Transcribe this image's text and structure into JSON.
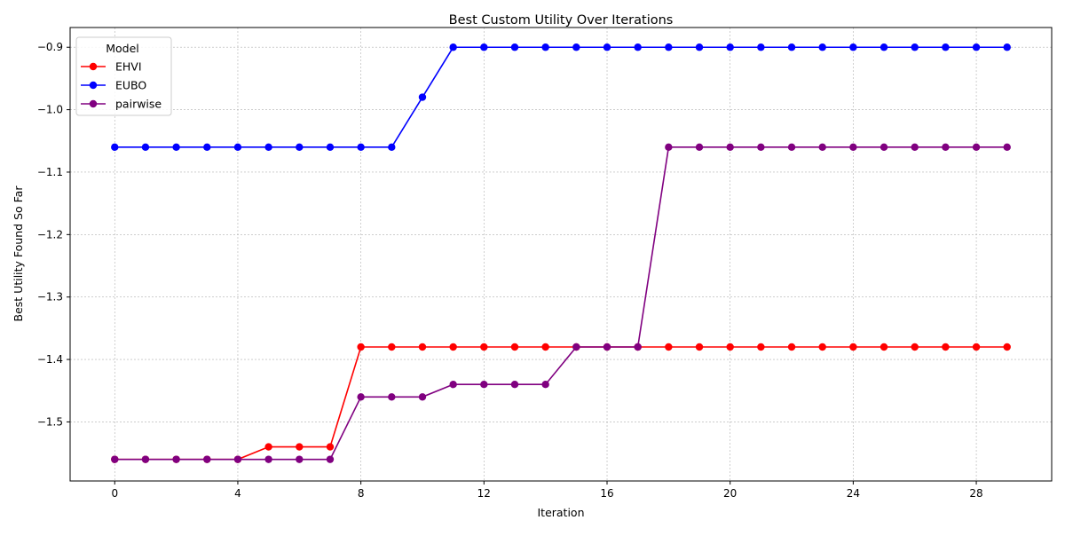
{
  "chart_data": {
    "type": "line",
    "title": "Best Custom Utility Over Iterations",
    "xlabel": "Iteration",
    "ylabel": "Best Utility Found So Far",
    "xlim": [
      -1.45,
      30.45
    ],
    "ylim": [
      -1.5946,
      -0.8684
    ],
    "xticks": [
      0,
      4,
      8,
      12,
      16,
      20,
      24,
      28
    ],
    "xtick_labels": [
      "0",
      "4",
      "8",
      "12",
      "16",
      "20",
      "24",
      "28"
    ],
    "yticks": [
      -1.5,
      -1.4,
      -1.3,
      -1.2,
      -1.1,
      -1.0,
      -0.9
    ],
    "ytick_labels": [
      "−1.5",
      "−1.4",
      "−1.3",
      "−1.2",
      "−1.1",
      "−1.0",
      "−0.9"
    ],
    "grid": true,
    "legend": {
      "title": "Model",
      "placement": "top-left"
    },
    "x": [
      0,
      1,
      2,
      3,
      4,
      5,
      6,
      7,
      8,
      9,
      10,
      11,
      12,
      13,
      14,
      15,
      16,
      17,
      18,
      19,
      20,
      21,
      22,
      23,
      24,
      25,
      26,
      27,
      28,
      29
    ],
    "series": [
      {
        "name": "EHVI",
        "color": "#ff0000",
        "values": [
          -1.56,
          -1.56,
          -1.56,
          -1.56,
          -1.56,
          -1.54,
          -1.54,
          -1.54,
          -1.38,
          -1.38,
          -1.38,
          -1.38,
          -1.38,
          -1.38,
          -1.38,
          -1.38,
          -1.38,
          -1.38,
          -1.38,
          -1.38,
          -1.38,
          -1.38,
          -1.38,
          -1.38,
          -1.38,
          -1.38,
          -1.38,
          -1.38,
          -1.38,
          -1.38
        ]
      },
      {
        "name": "EUBO",
        "color": "#0000ff",
        "values": [
          -1.06,
          -1.06,
          -1.06,
          -1.06,
          -1.06,
          -1.06,
          -1.06,
          -1.06,
          -1.06,
          -1.06,
          -0.98,
          -0.9,
          -0.9,
          -0.9,
          -0.9,
          -0.9,
          -0.9,
          -0.9,
          -0.9,
          -0.9,
          -0.9,
          -0.9,
          -0.9,
          -0.9,
          -0.9,
          -0.9,
          -0.9,
          -0.9,
          -0.9,
          -0.9
        ]
      },
      {
        "name": "pairwise",
        "color": "#800080",
        "values": [
          -1.56,
          -1.56,
          -1.56,
          -1.56,
          -1.56,
          -1.56,
          -1.56,
          -1.56,
          -1.46,
          -1.46,
          -1.46,
          -1.44,
          -1.44,
          -1.44,
          -1.44,
          -1.38,
          -1.38,
          -1.38,
          -1.06,
          -1.06,
          -1.06,
          -1.06,
          -1.06,
          -1.06,
          -1.06,
          -1.06,
          -1.06,
          -1.06,
          -1.06,
          -1.06
        ]
      }
    ]
  }
}
